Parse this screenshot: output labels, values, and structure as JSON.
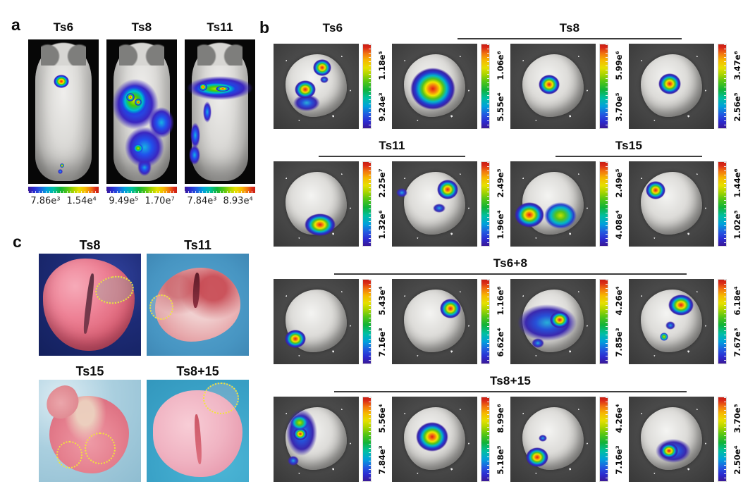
{
  "figure": {
    "panel_a": {
      "label": "a",
      "mice": [
        {
          "title": "Ts6",
          "scale_min": "7.86e³",
          "scale_max": "1.54e⁴"
        },
        {
          "title": "Ts8",
          "scale_min": "9.49e⁵",
          "scale_max": "1.70e⁷"
        },
        {
          "title": "Ts11",
          "scale_min": "7.84e³",
          "scale_max": "8.93e⁴"
        }
      ]
    },
    "panel_b": {
      "label": "b",
      "rows": [
        {
          "groups": [
            {
              "title": "Ts6",
              "units": [
                {
                  "min": "9.24e³",
                  "max": "1.18e⁵"
                }
              ]
            },
            {
              "title": "Ts8",
              "units": [
                {
                  "min": "5.55e⁴",
                  "max": "1.06e⁶"
                },
                {
                  "min": "3.70e⁵",
                  "max": "5.99e⁶"
                },
                {
                  "min": "2.56e⁵",
                  "max": "3.47e⁶"
                }
              ]
            }
          ]
        },
        {
          "groups": [
            {
              "title": "Ts11",
              "units": [
                {
                  "min": "1.32e⁶",
                  "max": "2.25e⁷"
                },
                {
                  "min": "1.96e⁴",
                  "max": "2.49e⁵"
                }
              ]
            },
            {
              "title": "Ts15",
              "units": [
                {
                  "min": "4.08e⁴",
                  "max": "2.49e⁵"
                },
                {
                  "min": "1.02e⁵",
                  "max": "1.44e⁶"
                }
              ]
            }
          ]
        },
        {
          "groups": [
            {
              "title": "Ts6+8",
              "units": [
                {
                  "min": "7.16e³",
                  "max": "5.43e⁴"
                },
                {
                  "min": "6.62e⁴",
                  "max": "1.16e⁶"
                },
                {
                  "min": "7.85e³",
                  "max": "4.26e⁴"
                },
                {
                  "min": "7.67e³",
                  "max": "6.18e⁴"
                }
              ]
            }
          ]
        },
        {
          "groups": [
            {
              "title": "Ts8+15",
              "units": [
                {
                  "min": "7.84e³",
                  "max": "5.56e⁴"
                },
                {
                  "min": "5.18e⁵",
                  "max": "8.99e⁶"
                },
                {
                  "min": "7.16e³",
                  "max": "4.26e⁴"
                },
                {
                  "min": "2.50e⁴",
                  "max": "3.70e⁵"
                }
              ]
            }
          ]
        }
      ]
    },
    "panel_c": {
      "label": "c",
      "photos": [
        {
          "title": "Ts8"
        },
        {
          "title": "Ts11"
        },
        {
          "title": "Ts15"
        },
        {
          "title": "Ts8+15"
        }
      ]
    },
    "colors": {
      "scale_low": "#3a1896",
      "scale_high": "#cc1f12",
      "tumor_outline": "#f2e43a"
    }
  }
}
